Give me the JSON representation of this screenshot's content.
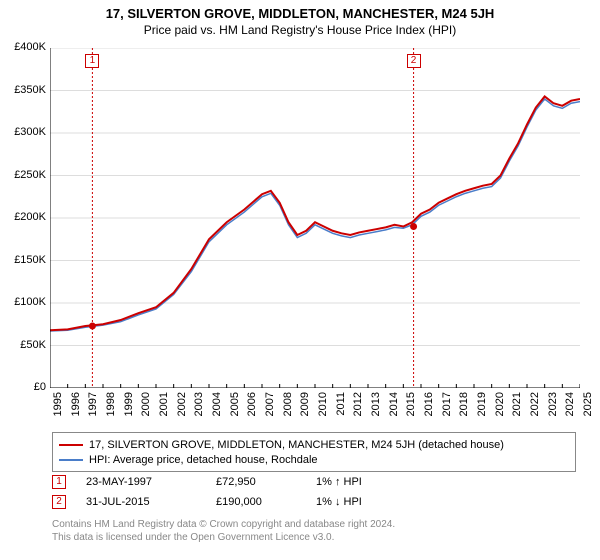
{
  "title": {
    "line1": "17, SILVERTON GROVE, MIDDLETON, MANCHESTER, M24 5JH",
    "line2": "Price paid vs. HM Land Registry's House Price Index (HPI)"
  },
  "chart": {
    "type": "line",
    "background_color": "#ffffff",
    "grid_color": "#dddddd",
    "axis_color": "#000000",
    "x_min": 1995,
    "x_max": 2025,
    "y_min": 0,
    "y_max": 400000,
    "y_ticks": [
      0,
      50000,
      100000,
      150000,
      200000,
      250000,
      300000,
      350000,
      400000
    ],
    "y_tick_labels": [
      "£0",
      "£50K",
      "£100K",
      "£150K",
      "£200K",
      "£250K",
      "£300K",
      "£350K",
      "£400K"
    ],
    "x_ticks": [
      1995,
      1996,
      1997,
      1998,
      1999,
      2000,
      2001,
      2002,
      2003,
      2004,
      2005,
      2006,
      2007,
      2008,
      2009,
      2010,
      2011,
      2012,
      2013,
      2014,
      2015,
      2016,
      2017,
      2018,
      2019,
      2020,
      2021,
      2022,
      2023,
      2024,
      2025
    ],
    "series": [
      {
        "name": "price_paid",
        "color": "#cc0000",
        "width": 2,
        "points": [
          [
            1995,
            68000
          ],
          [
            1996,
            69000
          ],
          [
            1997,
            72950
          ],
          [
            1998,
            75000
          ],
          [
            1999,
            80000
          ],
          [
            2000,
            88000
          ],
          [
            2001,
            95000
          ],
          [
            2002,
            112000
          ],
          [
            2003,
            140000
          ],
          [
            2004,
            175000
          ],
          [
            2005,
            195000
          ],
          [
            2006,
            210000
          ],
          [
            2007,
            228000
          ],
          [
            2007.5,
            232000
          ],
          [
            2008,
            218000
          ],
          [
            2008.5,
            195000
          ],
          [
            2009,
            180000
          ],
          [
            2009.5,
            185000
          ],
          [
            2010,
            195000
          ],
          [
            2010.5,
            190000
          ],
          [
            2011,
            185000
          ],
          [
            2011.5,
            182000
          ],
          [
            2012,
            180000
          ],
          [
            2012.5,
            183000
          ],
          [
            2013,
            185000
          ],
          [
            2013.5,
            187000
          ],
          [
            2014,
            189000
          ],
          [
            2014.5,
            192000
          ],
          [
            2015,
            190000
          ],
          [
            2015.5,
            195000
          ],
          [
            2016,
            205000
          ],
          [
            2016.5,
            210000
          ],
          [
            2017,
            218000
          ],
          [
            2017.5,
            223000
          ],
          [
            2018,
            228000
          ],
          [
            2018.5,
            232000
          ],
          [
            2019,
            235000
          ],
          [
            2019.5,
            238000
          ],
          [
            2020,
            240000
          ],
          [
            2020.5,
            250000
          ],
          [
            2021,
            270000
          ],
          [
            2021.5,
            288000
          ],
          [
            2022,
            310000
          ],
          [
            2022.5,
            330000
          ],
          [
            2023,
            343000
          ],
          [
            2023.5,
            335000
          ],
          [
            2024,
            332000
          ],
          [
            2024.5,
            338000
          ],
          [
            2025,
            340000
          ]
        ]
      },
      {
        "name": "hpi",
        "color": "#4a7dc9",
        "width": 1.5,
        "points": [
          [
            1995,
            67000
          ],
          [
            1996,
            68000
          ],
          [
            1997,
            71500
          ],
          [
            1998,
            74000
          ],
          [
            1999,
            78000
          ],
          [
            2000,
            86000
          ],
          [
            2001,
            93000
          ],
          [
            2002,
            110000
          ],
          [
            2003,
            137000
          ],
          [
            2004,
            172000
          ],
          [
            2005,
            192000
          ],
          [
            2006,
            207000
          ],
          [
            2007,
            225000
          ],
          [
            2007.5,
            229000
          ],
          [
            2008,
            215000
          ],
          [
            2008.5,
            192000
          ],
          [
            2009,
            177000
          ],
          [
            2009.5,
            182000
          ],
          [
            2010,
            192000
          ],
          [
            2010.5,
            187000
          ],
          [
            2011,
            182000
          ],
          [
            2011.5,
            179000
          ],
          [
            2012,
            177000
          ],
          [
            2012.5,
            180000
          ],
          [
            2013,
            182000
          ],
          [
            2013.5,
            184000
          ],
          [
            2014,
            186000
          ],
          [
            2014.5,
            189000
          ],
          [
            2015,
            188000
          ],
          [
            2015.5,
            192000
          ],
          [
            2016,
            202000
          ],
          [
            2016.5,
            207000
          ],
          [
            2017,
            215000
          ],
          [
            2017.5,
            220000
          ],
          [
            2018,
            225000
          ],
          [
            2018.5,
            229000
          ],
          [
            2019,
            232000
          ],
          [
            2019.5,
            235000
          ],
          [
            2020,
            237000
          ],
          [
            2020.5,
            247000
          ],
          [
            2021,
            267000
          ],
          [
            2021.5,
            285000
          ],
          [
            2022,
            307000
          ],
          [
            2022.5,
            327000
          ],
          [
            2023,
            340000
          ],
          [
            2023.5,
            332000
          ],
          [
            2024,
            329000
          ],
          [
            2024.5,
            335000
          ],
          [
            2025,
            337000
          ]
        ]
      }
    ],
    "event_markers": [
      {
        "id": "1",
        "x": 1997.4,
        "y": 72950
      },
      {
        "id": "2",
        "x": 2015.58,
        "y": 190000
      }
    ],
    "label_fontsize": 11
  },
  "legend": {
    "items": [
      {
        "color": "#cc0000",
        "label": "17, SILVERTON GROVE, MIDDLETON, MANCHESTER, M24 5JH (detached house)"
      },
      {
        "color": "#4a7dc9",
        "label": "HPI: Average price, detached house, Rochdale"
      }
    ]
  },
  "transactions": [
    {
      "id": "1",
      "date": "23-MAY-1997",
      "price": "£72,950",
      "diff": "1%",
      "direction": "up",
      "vs": "HPI"
    },
    {
      "id": "2",
      "date": "31-JUL-2015",
      "price": "£190,000",
      "diff": "1%",
      "direction": "down",
      "vs": "HPI"
    }
  ],
  "footer": {
    "line1": "Contains HM Land Registry data © Crown copyright and database right 2024.",
    "line2": "This data is licensed under the Open Government Licence v3.0."
  }
}
